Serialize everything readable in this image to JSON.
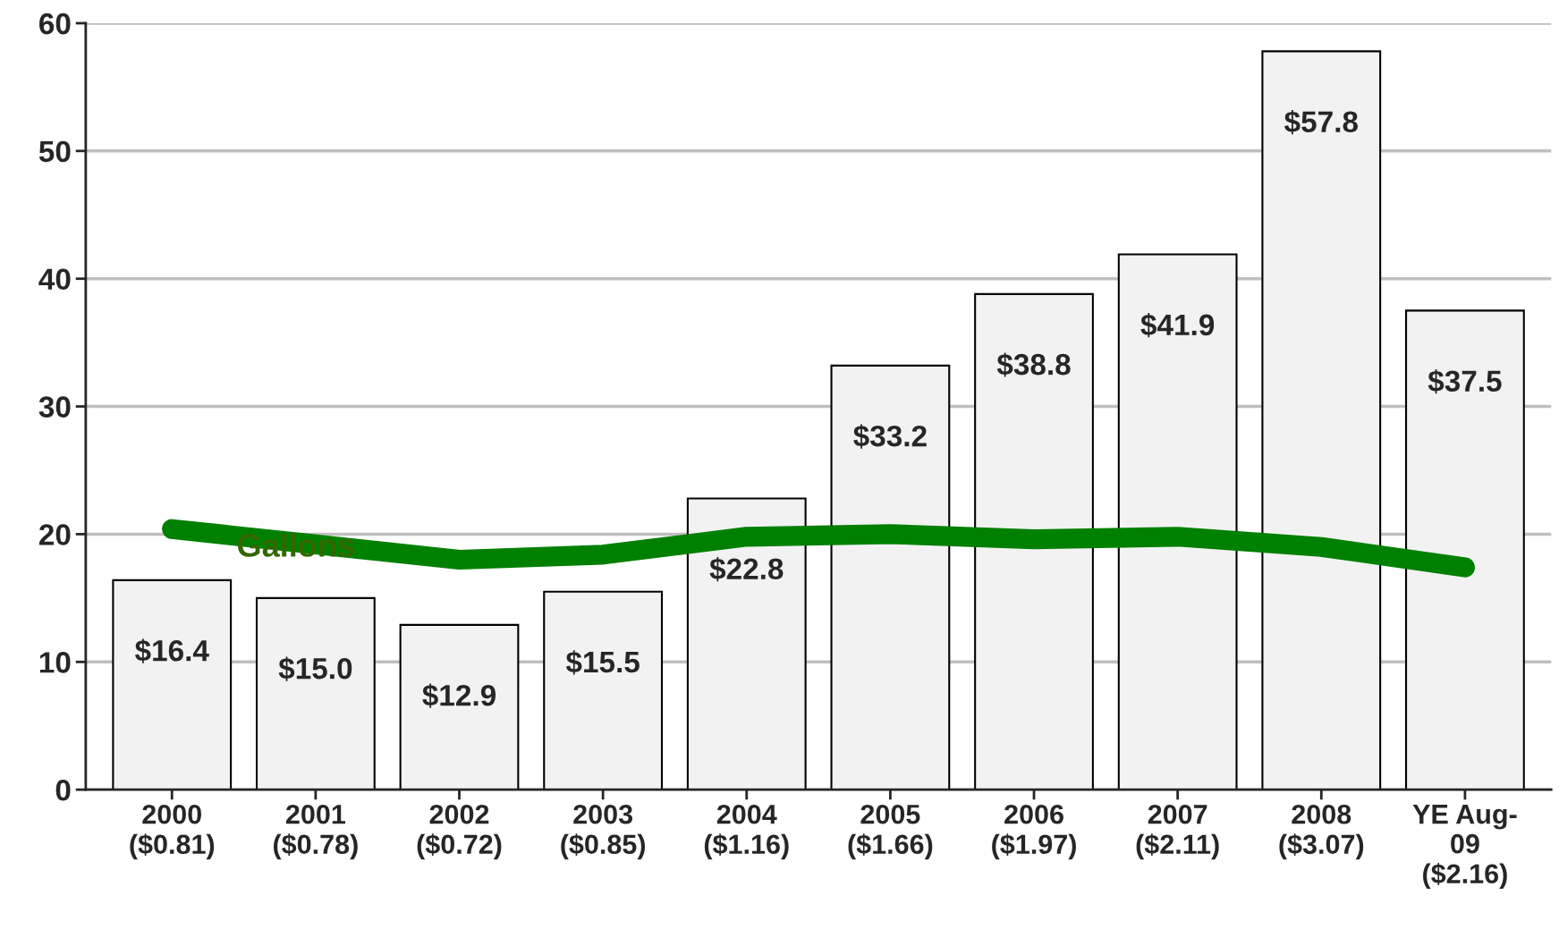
{
  "chart_data": {
    "type": "bar",
    "categories": [
      "2000\n($0.81)",
      "2001\n($0.78)",
      "2002\n($0.72)",
      "2003\n($0.85)",
      "2004\n($1.16)",
      "2005\n($1.66)",
      "2006\n($1.97)",
      "2007\n($2.11)",
      "2008\n($3.07)",
      "YE Aug-\n09\n($2.16)"
    ],
    "series": [
      {
        "color": "#f2f2f2",
        "values": [
          16.4,
          15.0,
          12.9,
          15.5,
          22.8,
          33.2,
          38.8,
          41.9,
          57.8,
          37.5
        ],
        "value_labels": [
          "$16.4",
          "$15.0",
          "$12.9",
          "$15.5",
          "$22.8",
          "$33.2",
          "$38.8",
          "$41.9",
          "$57.8",
          "$37.5"
        ]
      },
      {
        "type": "line",
        "name": "Gallons",
        "color": "#008000",
        "values": [
          20.4,
          19.2,
          18.0,
          18.4,
          19.8,
          20.0,
          19.6,
          19.8,
          19.0,
          17.4
        ]
      }
    ],
    "ylim": [
      0,
      60
    ],
    "yticks": [
      0,
      10,
      20,
      30,
      40,
      50,
      60
    ],
    "grid": "y",
    "legend": false
  }
}
